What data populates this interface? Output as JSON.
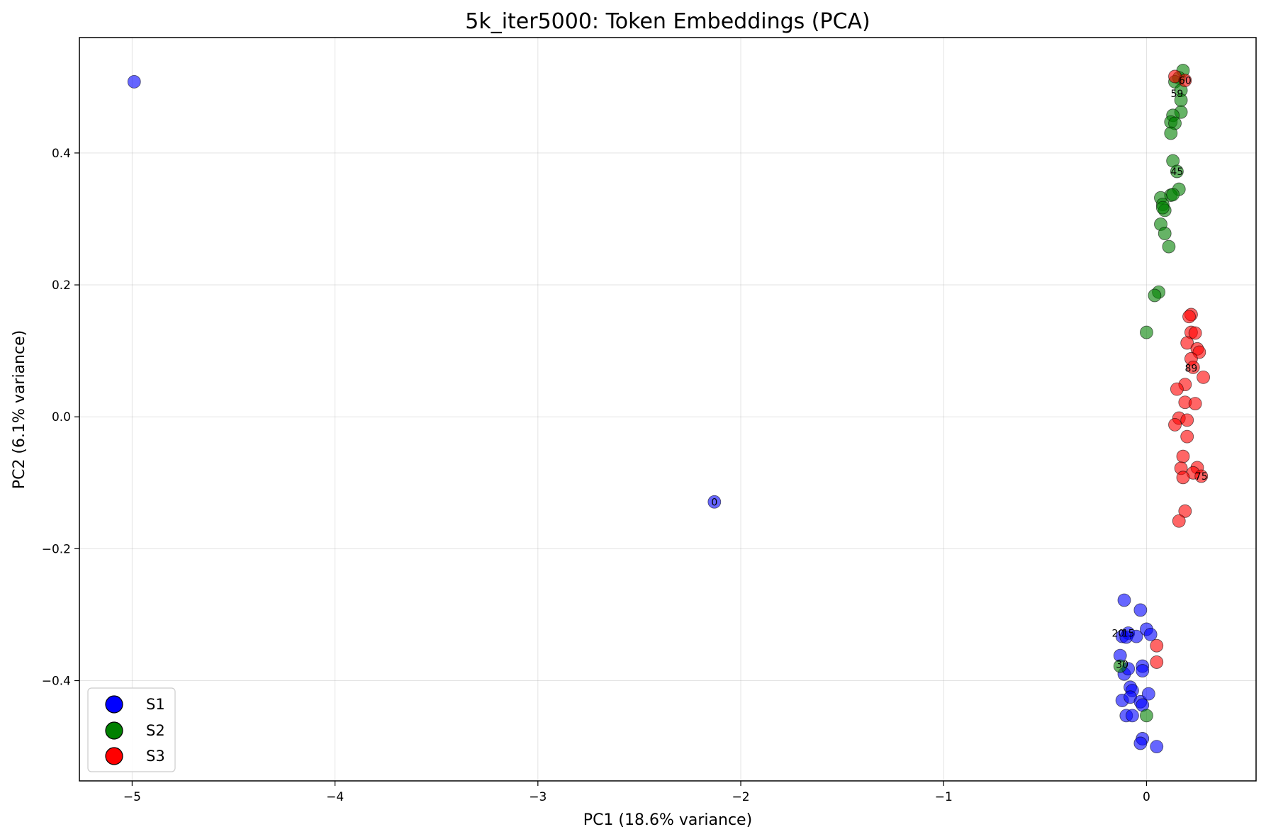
{
  "chart_data": {
    "type": "scatter",
    "title": "5k_iter5000: Token Embeddings (PCA)",
    "xlabel": "PC1 (18.6% variance)",
    "ylabel": "PC2 (6.1% variance)",
    "xlim": [
      -5.26,
      0.54
    ],
    "ylim": [
      -0.552,
      0.575
    ],
    "xticks": [
      -5,
      -4,
      -3,
      -2,
      -1,
      0
    ],
    "xtick_labels": [
      "−5",
      "−4",
      "−3",
      "−2",
      "−1",
      "0"
    ],
    "yticks": [
      -0.4,
      -0.2,
      0.0,
      0.2,
      0.4
    ],
    "ytick_labels": [
      "−0.4",
      "−0.2",
      "0.0",
      "0.2",
      "0.4"
    ],
    "grid": true,
    "legend_position": "lower-left",
    "series": [
      {
        "name": "S1",
        "color": "#0000ff",
        "points": [
          [
            -4.99,
            0.508
          ],
          [
            -2.13,
            -0.129
          ],
          [
            -0.11,
            -0.278
          ],
          [
            -0.09,
            -0.328
          ],
          [
            -0.12,
            -0.333
          ],
          [
            -0.1,
            -0.334
          ],
          [
            -0.05,
            -0.333
          ],
          [
            -0.03,
            -0.293
          ],
          [
            0.0,
            -0.322
          ],
          [
            0.02,
            -0.33
          ],
          [
            -0.13,
            -0.362
          ],
          [
            -0.11,
            -0.39
          ],
          [
            -0.09,
            -0.382
          ],
          [
            -0.02,
            -0.378
          ],
          [
            -0.02,
            -0.385
          ],
          [
            -0.08,
            -0.41
          ],
          [
            -0.07,
            -0.415
          ],
          [
            -0.12,
            -0.43
          ],
          [
            -0.08,
            -0.425
          ],
          [
            -0.03,
            -0.432
          ],
          [
            -0.02,
            -0.437
          ],
          [
            0.01,
            -0.42
          ],
          [
            -0.1,
            -0.453
          ],
          [
            -0.07,
            -0.453
          ],
          [
            -0.02,
            -0.488
          ],
          [
            -0.03,
            -0.495
          ],
          [
            0.05,
            -0.5
          ]
        ]
      },
      {
        "name": "S2",
        "color": "#008000",
        "points": [
          [
            0.18,
            0.525
          ],
          [
            0.16,
            0.514
          ],
          [
            0.14,
            0.508
          ],
          [
            0.17,
            0.495
          ],
          [
            0.17,
            0.48
          ],
          [
            0.17,
            0.462
          ],
          [
            0.13,
            0.457
          ],
          [
            0.12,
            0.447
          ],
          [
            0.14,
            0.445
          ],
          [
            0.12,
            0.43
          ],
          [
            0.13,
            0.388
          ],
          [
            0.15,
            0.372
          ],
          [
            0.16,
            0.345
          ],
          [
            0.12,
            0.336
          ],
          [
            0.13,
            0.337
          ],
          [
            0.07,
            0.332
          ],
          [
            0.08,
            0.322
          ],
          [
            0.09,
            0.313
          ],
          [
            0.08,
            0.317
          ],
          [
            0.07,
            0.292
          ],
          [
            0.09,
            0.278
          ],
          [
            0.11,
            0.258
          ],
          [
            0.06,
            0.189
          ],
          [
            0.04,
            0.184
          ],
          [
            0.0,
            0.128
          ],
          [
            -0.13,
            -0.378
          ],
          [
            0.0,
            -0.453
          ]
        ]
      },
      {
        "name": "S3",
        "color": "#ff0000",
        "points": [
          [
            0.14,
            0.516
          ],
          [
            0.19,
            0.51
          ],
          [
            0.22,
            0.155
          ],
          [
            0.21,
            0.152
          ],
          [
            0.22,
            0.128
          ],
          [
            0.24,
            0.127
          ],
          [
            0.2,
            0.112
          ],
          [
            0.25,
            0.103
          ],
          [
            0.26,
            0.098
          ],
          [
            0.22,
            0.088
          ],
          [
            0.23,
            0.075
          ],
          [
            0.28,
            0.06
          ],
          [
            0.19,
            0.049
          ],
          [
            0.15,
            0.042
          ],
          [
            0.19,
            0.022
          ],
          [
            0.24,
            0.02
          ],
          [
            0.16,
            -0.002
          ],
          [
            0.2,
            -0.005
          ],
          [
            0.14,
            -0.012
          ],
          [
            0.2,
            -0.03
          ],
          [
            0.18,
            -0.06
          ],
          [
            0.17,
            -0.078
          ],
          [
            0.25,
            -0.077
          ],
          [
            0.23,
            -0.085
          ],
          [
            0.18,
            -0.092
          ],
          [
            0.27,
            -0.09
          ],
          [
            0.19,
            -0.143
          ],
          [
            0.16,
            -0.158
          ],
          [
            0.05,
            -0.347
          ],
          [
            0.05,
            -0.372
          ]
        ]
      }
    ],
    "annotations": [
      {
        "text": "0",
        "x": -2.13,
        "y": -0.129
      },
      {
        "text": "60",
        "x": 0.19,
        "y": 0.51
      },
      {
        "text": "59",
        "x": 0.15,
        "y": 0.49
      },
      {
        "text": "45",
        "x": 0.15,
        "y": 0.372
      },
      {
        "text": "89",
        "x": 0.22,
        "y": 0.074
      },
      {
        "text": "75",
        "x": 0.27,
        "y": -0.09
      },
      {
        "text": "20",
        "x": -0.14,
        "y": -0.328
      },
      {
        "text": "15",
        "x": -0.09,
        "y": -0.328
      },
      {
        "text": "30",
        "x": -0.12,
        "y": -0.375
      }
    ]
  }
}
